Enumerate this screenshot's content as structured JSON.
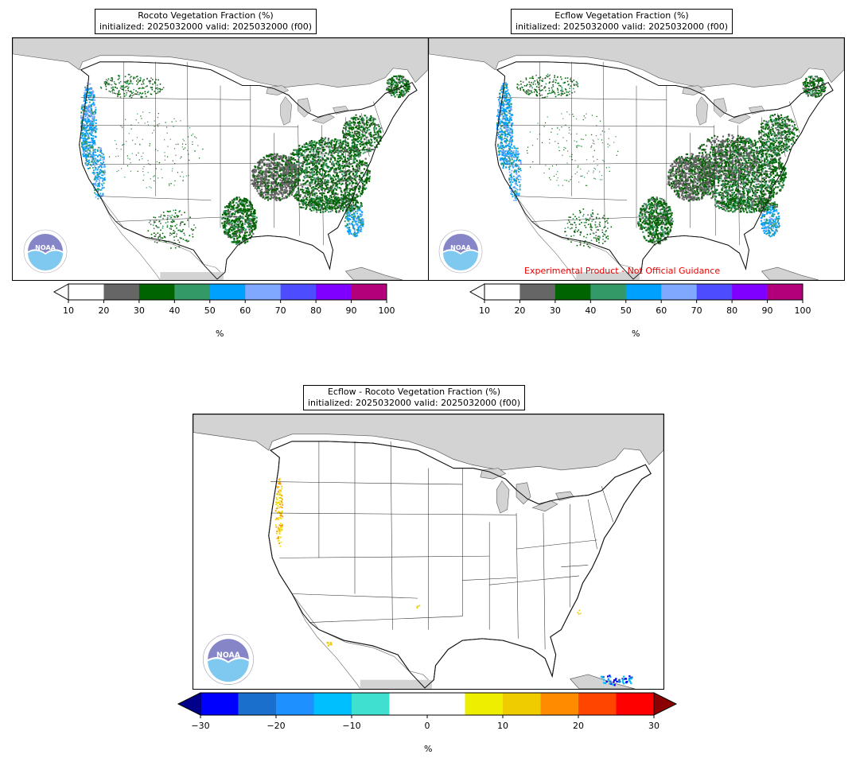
{
  "panels": [
    {
      "id": "rocoto",
      "title_line1": "Rocoto Vegetation Fraction (%)",
      "title_line2": "initialized: 2025032000 valid: 2025032000 (f00)"
    },
    {
      "id": "ecflow",
      "title_line1": "Ecflow Vegetation Fraction (%)",
      "title_line2": "initialized: 2025032000 valid: 2025032000 (f00)",
      "disclaimer": "Experimental Product - Not Official Guidance"
    },
    {
      "id": "diff",
      "title_line1": "Ecflow - Rocoto Vegetation Fraction (%)",
      "title_line2": "initialized: 2025032000 valid: 2025032000 (f00)"
    }
  ],
  "colorbar_top": {
    "unit": "%",
    "ticks": [
      "10",
      "20",
      "30",
      "40",
      "50",
      "60",
      "70",
      "80",
      "90",
      "100"
    ],
    "under_color": "#ffffff",
    "colors": [
      "#ffffff",
      "#666666",
      "#006400",
      "#339966",
      "#00a0ff",
      "#80a8ff",
      "#4d4dff",
      "#8000ff",
      "#b3007a"
    ]
  },
  "colorbar_diff": {
    "unit": "%",
    "ticks": [
      "−30",
      "−20",
      "−10",
      "0",
      "10",
      "20",
      "30"
    ],
    "under_color": "#00008b",
    "over_color": "#8b0000",
    "colors": [
      "#0000ff",
      "#1a6fcc",
      "#1e90ff",
      "#00bfff",
      "#40e0d0",
      "#ffffff",
      "#ffffff",
      "#eeee00",
      "#eecc00",
      "#ff8c00",
      "#ff4500",
      "#ff0000"
    ]
  },
  "logo": {
    "text": "NOAA",
    "ring_text": "NATIONAL OCEANIC AND ATMOSPHERIC ADMINISTRATION · U.S. DEPARTMENT OF COMMERCE",
    "colors": {
      "top": "#8585c8",
      "bottom": "#7fc8f0"
    }
  }
}
